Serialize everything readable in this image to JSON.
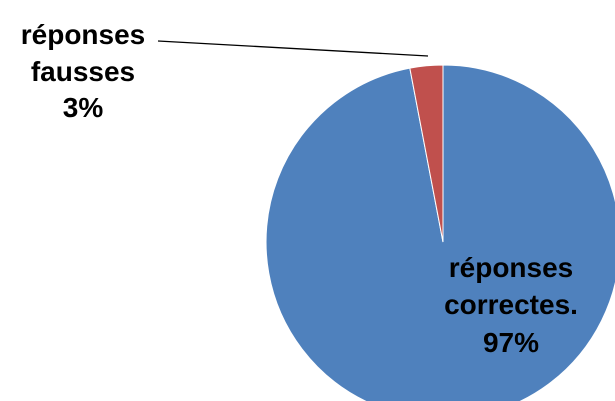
{
  "chart_data": {
    "type": "pie",
    "start_angle": "12 o'clock",
    "direction": "counterclockwise",
    "slices": [
      {
        "label_lines": [
          "réponses",
          "correctes."
        ],
        "value_label": "97%",
        "value": 97,
        "color": "#4F81BD"
      },
      {
        "label_lines": [
          "réponses",
          "fausses"
        ],
        "value_label": "3%",
        "value": 3,
        "color": "#C0504D"
      }
    ]
  }
}
